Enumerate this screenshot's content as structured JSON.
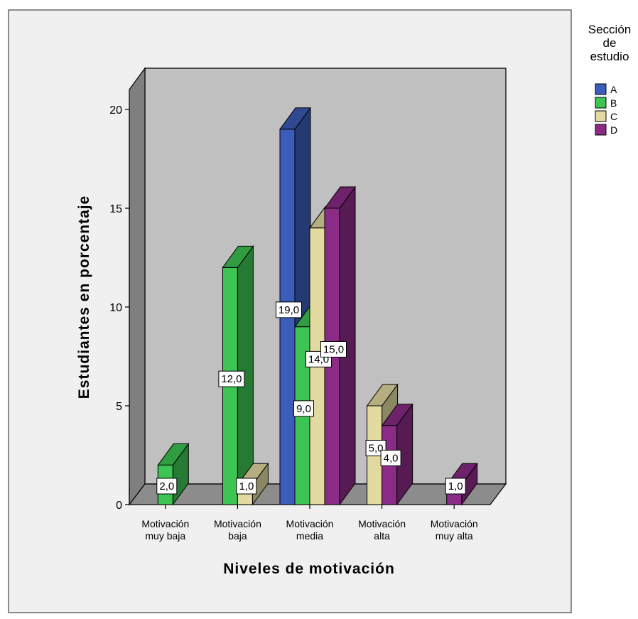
{
  "chart_data": {
    "type": "bar",
    "xlabel": "Niveles de motivación",
    "ylabel": "Estudiantes en porcentaje",
    "ylim": [
      0,
      20
    ],
    "yticks": [
      0,
      5,
      10,
      15,
      20
    ],
    "categories": [
      [
        "Motivación",
        "muy baja"
      ],
      [
        "Motivación",
        "baja"
      ],
      [
        "Motivación",
        "media"
      ],
      [
        "Motivación",
        "alta"
      ],
      [
        "Motivación",
        "muy alta"
      ]
    ],
    "legend": {
      "title": [
        "Sección",
        "de",
        "estudio"
      ],
      "position": "top-right"
    },
    "series": [
      {
        "name": "A",
        "color": "#3B5CB8",
        "values": [
          null,
          null,
          19.0,
          null,
          null
        ],
        "labels": [
          null,
          null,
          "19,0",
          null,
          null
        ]
      },
      {
        "name": "B",
        "color": "#3DC452",
        "values": [
          2.0,
          12.0,
          9.0,
          null,
          null
        ],
        "labels": [
          "2,0",
          "12,0",
          "9,0",
          null,
          null
        ]
      },
      {
        "name": "C",
        "color": "#E2DAA0",
        "values": [
          null,
          1.0,
          14.0,
          5.0,
          null
        ],
        "labels": [
          null,
          "1,0",
          "14,0",
          "5,0",
          null
        ]
      },
      {
        "name": "D",
        "color": "#8A2B86",
        "values": [
          null,
          null,
          15.0,
          4.0,
          1.0
        ],
        "labels": [
          null,
          null,
          "15,0",
          "4,0",
          "1,0"
        ]
      }
    ],
    "grid": false
  }
}
